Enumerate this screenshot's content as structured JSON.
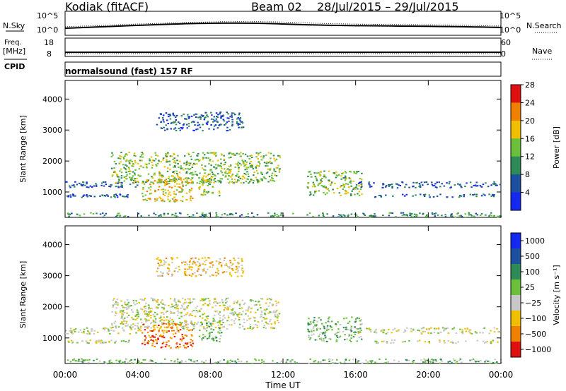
{
  "header": {
    "station": "Kodiak (fitACF)",
    "beam": "Beam 02",
    "date_range": "28/Jul/2015 – 29/Jul/2015"
  },
  "top_panels": {
    "nsky_label": "N.Sky",
    "nsky_ticks": [
      "10^5",
      "10^0"
    ],
    "nsearch_label": "N.Search",
    "freq_label_1": "Freq.",
    "freq_label_2": "[MHz]",
    "freq_ticks": [
      "18",
      "8"
    ],
    "nave_ticks": [
      "60",
      "0"
    ],
    "nave_label": "Nave",
    "cpid_label": "CPID",
    "cpid_text": "normalsound (fast) 157 RF"
  },
  "chart_data": [
    {
      "type": "heatmap",
      "panel": "power",
      "ylabel": "Slant Range [km]",
      "y_ticks": [
        "1000",
        "2000",
        "3000",
        "4000"
      ],
      "ylim": [
        180,
        4600
      ],
      "colorbar_label": "Power [dB]",
      "colorbar_ticks": [
        "4",
        "8",
        "12",
        "16",
        "20",
        "24",
        "28"
      ],
      "colorbar_colors": [
        "#1428f0",
        "#1e50a0",
        "#2e8b57",
        "#6bbf3a",
        "#f0c000",
        "#f08000",
        "#e01010"
      ],
      "regions": [
        {
          "name": "near-range band",
          "t": [
            0,
            24
          ],
          "r": [
            200,
            350
          ],
          "level": 2
        },
        {
          "name": "band 1300 km",
          "t": [
            0,
            4.2
          ],
          "r": [
            1150,
            1350
          ],
          "level": 1
        },
        {
          "name": "band 900 km",
          "t": [
            0,
            3.5
          ],
          "r": [
            850,
            950
          ],
          "level": 1
        },
        {
          "name": "arc 1500-2200 km",
          "t": [
            2.5,
            11.8
          ],
          "r": [
            1300,
            2300
          ],
          "level": 3
        },
        {
          "name": "patch 04-07 UT",
          "t": [
            4.2,
            7.0
          ],
          "r": [
            700,
            1500
          ],
          "level": 4
        },
        {
          "name": "patch 07-08 UT",
          "t": [
            7.3,
            8.6
          ],
          "r": [
            900,
            1600
          ],
          "level": 3
        },
        {
          "name": "upper patch",
          "t": [
            5.0,
            9.8
          ],
          "r": [
            3000,
            3600
          ],
          "level": 1
        },
        {
          "name": "feature 13-16 UT",
          "t": [
            13.3,
            16.3
          ],
          "r": [
            900,
            1700
          ],
          "level": 3
        },
        {
          "name": "band 16-24 UT",
          "t": [
            16.0,
            24
          ],
          "r": [
            1150,
            1350
          ],
          "level": 1
        },
        {
          "name": "band 16-24 UT low",
          "t": [
            17.0,
            24
          ],
          "r": [
            850,
            950
          ],
          "level": 1
        }
      ]
    },
    {
      "type": "heatmap",
      "panel": "velocity",
      "ylabel": "Slant Range [km]",
      "y_ticks": [
        "1000",
        "2000",
        "3000",
        "4000"
      ],
      "ylim": [
        180,
        4600
      ],
      "colorbar_label": "Velocity [m s⁻¹]",
      "colorbar_ticks": [
        "1000",
        "500",
        "100",
        "25",
        "−25",
        "−100",
        "−500",
        "−1000"
      ],
      "colorbar_colors": [
        "#1428f0",
        "#1e50a0",
        "#2e8b57",
        "#6bbf3a",
        "#c8c8c8",
        "#f0c000",
        "#f08000",
        "#e01010"
      ],
      "regions": [
        {
          "name": "near-range band",
          "t": [
            0,
            24
          ],
          "r": [
            200,
            350
          ],
          "level": 3
        },
        {
          "name": "band 1300 km",
          "t": [
            0,
            4.2
          ],
          "r": [
            1150,
            1350
          ],
          "level": 4
        },
        {
          "name": "band 900 km",
          "t": [
            0,
            3.5
          ],
          "r": [
            850,
            950
          ],
          "level": 4
        },
        {
          "name": "arc 1500-2200 km",
          "t": [
            2.5,
            11.8
          ],
          "r": [
            1300,
            2300
          ],
          "level": 4
        },
        {
          "name": "patch 04-07 UT",
          "t": [
            4.2,
            7.0
          ],
          "r": [
            700,
            1500
          ],
          "level": 6
        },
        {
          "name": "patch 07-08 UT",
          "t": [
            7.3,
            8.6
          ],
          "r": [
            900,
            1600
          ],
          "level": 3
        },
        {
          "name": "upper patch",
          "t": [
            5.0,
            9.8
          ],
          "r": [
            3000,
            3600
          ],
          "level": 5
        },
        {
          "name": "feature 13-16 UT",
          "t": [
            13.3,
            16.3
          ],
          "r": [
            900,
            1700
          ],
          "level": 3
        },
        {
          "name": "band 16-24 UT",
          "t": [
            16.0,
            24
          ],
          "r": [
            1150,
            1350
          ],
          "level": 4
        },
        {
          "name": "band 16-24 UT low",
          "t": [
            17.0,
            24
          ],
          "r": [
            850,
            950
          ],
          "level": 4
        }
      ]
    }
  ],
  "xaxis": {
    "label": "Time UT",
    "ticks": [
      "00:00",
      "04:00",
      "08:00",
      "12:00",
      "16:00",
      "20:00",
      "00:00"
    ]
  }
}
